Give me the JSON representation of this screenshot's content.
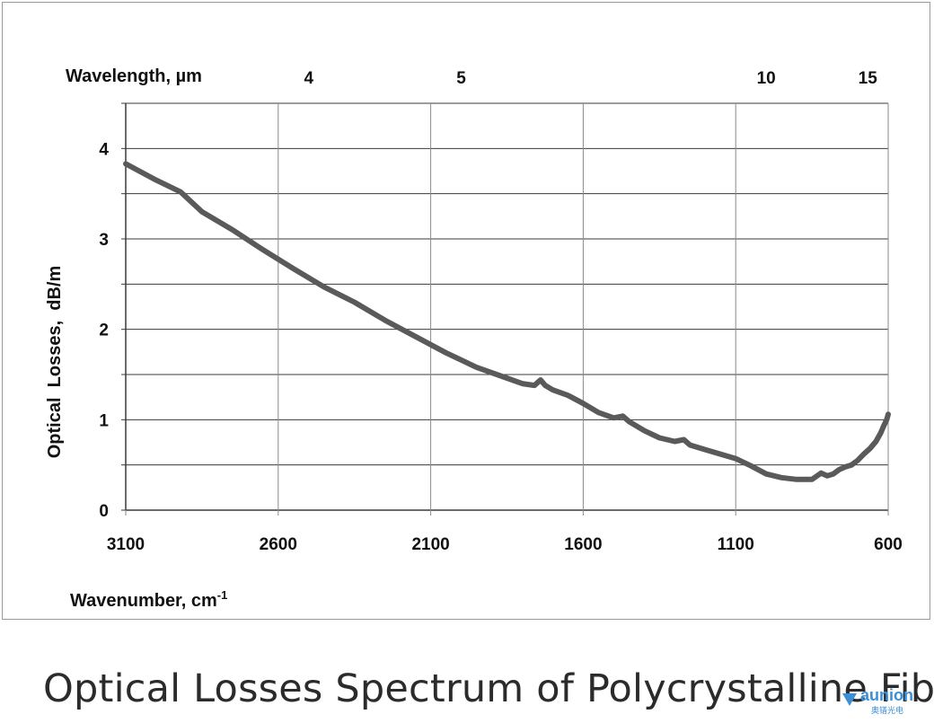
{
  "chart_data": {
    "type": "line",
    "title": "Optical Losses Spectrum of Polycrystalline Fiber",
    "xlabel_bottom": "Wavenumber, cm",
    "xlabel_bottom_sup": "-1",
    "xlabel_top": "Wavelength, µm",
    "ylabel": "Optical  Losses,  dB/m",
    "xlim": [
      3100,
      600
    ],
    "ylim": [
      0,
      4.5
    ],
    "x_ticks": [
      "3100",
      "2600",
      "2100",
      "1600",
      "1100",
      "600"
    ],
    "y_ticks": [
      "0",
      "1",
      "2",
      "3",
      "4"
    ],
    "top_ticks": [
      {
        "label": "4",
        "wavenumber": 2500
      },
      {
        "label": "5",
        "wavenumber": 2000
      },
      {
        "label": "10",
        "wavenumber": 1000
      },
      {
        "label": "15",
        "wavenumber": 667
      }
    ],
    "grid": true,
    "series": [
      {
        "color": "#5a5a5a",
        "x": [
          3100,
          3000,
          2920,
          2850,
          2750,
          2650,
          2550,
          2450,
          2350,
          2250,
          2150,
          2050,
          1950,
          1850,
          1800,
          1760,
          1740,
          1725,
          1700,
          1650,
          1600,
          1550,
          1500,
          1470,
          1450,
          1400,
          1350,
          1300,
          1270,
          1250,
          1200,
          1150,
          1100,
          1050,
          1000,
          950,
          900,
          850,
          820,
          800,
          780,
          760,
          740,
          720,
          700,
          680,
          660,
          640,
          625,
          615,
          605,
          600
        ],
        "y": [
          3.83,
          3.65,
          3.52,
          3.3,
          3.1,
          2.88,
          2.67,
          2.47,
          2.3,
          2.1,
          1.92,
          1.74,
          1.58,
          1.46,
          1.4,
          1.38,
          1.44,
          1.38,
          1.33,
          1.27,
          1.18,
          1.08,
          1.02,
          1.04,
          0.98,
          0.88,
          0.8,
          0.76,
          0.78,
          0.72,
          0.67,
          0.62,
          0.57,
          0.49,
          0.4,
          0.36,
          0.34,
          0.34,
          0.41,
          0.38,
          0.4,
          0.45,
          0.48,
          0.5,
          0.55,
          0.62,
          0.68,
          0.76,
          0.85,
          0.93,
          1.0,
          1.06
        ]
      }
    ]
  },
  "logo": {
    "text": "aunion",
    "sub": "奥镨光电"
  }
}
